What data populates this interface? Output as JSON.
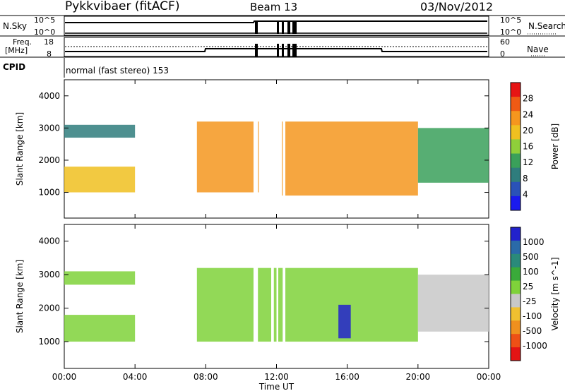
{
  "header": {
    "title": "Pykkvibaer (fitACF)",
    "beam": "Beam 13",
    "date": "03/Nov/2012"
  },
  "panels": {
    "nsky_label": "N.Sky",
    "nsearch_label": "N.Search",
    "nsky_ticks": [
      "10^5",
      "10^0"
    ],
    "nsearch_ticks": [
      "10^5",
      "10^0"
    ],
    "freq_label_1": "Freq.",
    "freq_label_2": "[MHz]",
    "freq_ticks": [
      "18",
      "8"
    ],
    "nave_label": "Nave",
    "nave_ticks": [
      "60",
      "0"
    ],
    "cpid_label": "CPID",
    "cpid_text": "normal (fast stereo) 153"
  },
  "colors": {
    "power_scale": [
      "#1a1aee",
      "#2a52b8",
      "#2f7d7d",
      "#3aa05a",
      "#8fcf3a",
      "#f0c020",
      "#f5961e",
      "#ef5a14",
      "#e61414"
    ],
    "velocity_scale": [
      "#2222cc",
      "#2a6aa8",
      "#2a8a7a",
      "#3aaa3a",
      "#7fd23a",
      "#c8c8c8",
      "#f0c030",
      "#f0901e",
      "#ee5016",
      "#e41414"
    ]
  },
  "chart_data": [
    {
      "type": "heatmap",
      "title": "",
      "xlabel": "Time UT",
      "ylabel": "Slant Range [km]",
      "x_ticks": [
        "00:00",
        "04:00",
        "08:00",
        "12:00",
        "16:00",
        "20:00",
        "00:00"
      ],
      "y_ticks": [
        "4000",
        "3000",
        "2000",
        "1000"
      ],
      "ylim": [
        200,
        4500
      ],
      "colorbar_label": "Power [dB]",
      "colorbar_ticks": [
        "28",
        "24",
        "20",
        "16",
        "12",
        "8",
        "4"
      ],
      "clim": [
        0,
        32
      ],
      "echo_regions_hours_km": [
        {
          "t0": 0.0,
          "t1": 4.0,
          "r0": 1000,
          "r1": 1800,
          "level": 20
        },
        {
          "t0": 0.0,
          "t1": 4.0,
          "r0": 2700,
          "r1": 3100,
          "level": 10
        },
        {
          "t0": 7.5,
          "t1": 11.0,
          "r0": 1000,
          "r1": 3200,
          "level": 22
        },
        {
          "t0": 12.3,
          "t1": 20.0,
          "r0": 900,
          "r1": 3200,
          "level": 24
        },
        {
          "t0": 20.0,
          "t1": 24.0,
          "r0": 1300,
          "r1": 3000,
          "level": 12
        }
      ]
    },
    {
      "type": "heatmap",
      "title": "",
      "xlabel": "Time UT",
      "ylabel": "Slant Range [km]",
      "x_ticks": [
        "00:00",
        "04:00",
        "08:00",
        "12:00",
        "16:00",
        "20:00",
        "00:00"
      ],
      "y_ticks": [
        "4000",
        "3000",
        "2000",
        "1000"
      ],
      "ylim": [
        200,
        4500
      ],
      "colorbar_label": "Velocity [m s^-1]",
      "colorbar_ticks": [
        "1000",
        "500",
        "100",
        "25",
        "-25",
        "-100",
        "-500",
        "-1000"
      ],
      "clim": [
        -1000,
        1000
      ],
      "echo_regions_hours_km": [
        {
          "t0": 0.0,
          "t1": 4.0,
          "r0": 1000,
          "r1": 1800,
          "velocity": 150
        },
        {
          "t0": 0.0,
          "t1": 4.0,
          "r0": 2700,
          "r1": 3100,
          "velocity": 0
        },
        {
          "t0": 7.5,
          "t1": 20.0,
          "r0": 1000,
          "r1": 3200,
          "velocity": 0
        },
        {
          "t0": 15.5,
          "t1": 16.2,
          "r0": 1100,
          "r1": 2100,
          "velocity": 900
        },
        {
          "t0": 20.0,
          "t1": 24.0,
          "r0": 1300,
          "r1": 3000,
          "velocity": -80
        }
      ]
    }
  ]
}
